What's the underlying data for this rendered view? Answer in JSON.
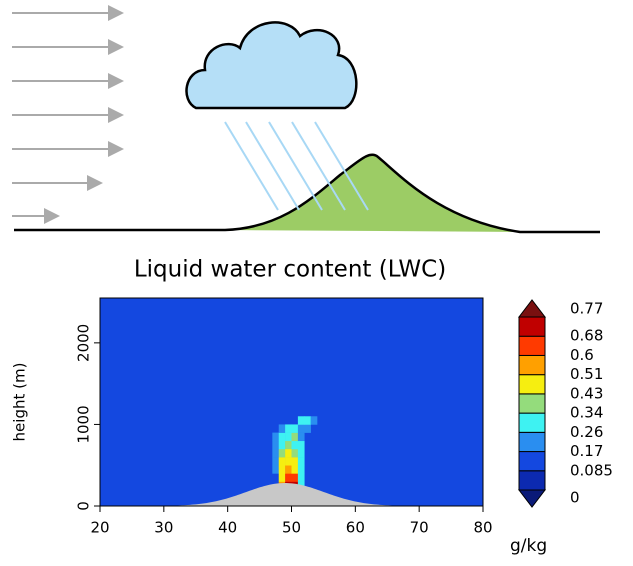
{
  "chart_data": {
    "type": "heatmap",
    "title": "Liquid water content (LWC)",
    "y_label": "height (m)",
    "colorbar_label": "g/kg",
    "xlim": [
      20,
      80
    ],
    "xticks": [
      20,
      30,
      40,
      50,
      60,
      70,
      80
    ],
    "ylim": [
      0,
      2550
    ],
    "yticks": [
      0,
      1000,
      2000
    ],
    "background": "#1448e0",
    "levels": [
      0,
      0.085,
      0.17,
      0.26,
      0.34,
      0.43,
      0.51,
      0.6,
      0.68,
      0.77
    ],
    "colors": [
      "#0a1a78",
      "#0c2ab0",
      "#1448e0",
      "#2a8ef0",
      "#3ef2f2",
      "#94dc7c",
      "#f6ee10",
      "#ffa000",
      "#ff3a00",
      "#c00000",
      "#7a1010"
    ],
    "cell_size": [
      1,
      100
    ],
    "cells": [
      [
        48,
        200,
        0.55
      ],
      [
        49,
        200,
        0.72
      ],
      [
        50,
        200,
        0.72
      ],
      [
        51,
        200,
        0.3
      ],
      [
        48,
        300,
        0.47
      ],
      [
        49,
        300,
        0.65
      ],
      [
        50,
        300,
        0.6
      ],
      [
        51,
        300,
        0.3
      ],
      [
        47,
        400,
        0.2
      ],
      [
        48,
        400,
        0.47
      ],
      [
        49,
        400,
        0.55
      ],
      [
        50,
        400,
        0.47
      ],
      [
        51,
        400,
        0.3
      ],
      [
        47,
        500,
        0.2
      ],
      [
        48,
        500,
        0.47
      ],
      [
        49,
        500,
        0.47
      ],
      [
        50,
        500,
        0.47
      ],
      [
        51,
        500,
        0.3
      ],
      [
        47,
        600,
        0.2
      ],
      [
        48,
        600,
        0.38
      ],
      [
        49,
        600,
        0.47
      ],
      [
        50,
        600,
        0.38
      ],
      [
        51,
        600,
        0.3
      ],
      [
        47,
        700,
        0.2
      ],
      [
        48,
        700,
        0.3
      ],
      [
        49,
        700,
        0.38
      ],
      [
        50,
        700,
        0.3
      ],
      [
        51,
        700,
        0.3
      ],
      [
        47,
        800,
        0.2
      ],
      [
        48,
        800,
        0.3
      ],
      [
        49,
        800,
        0.3
      ],
      [
        50,
        800,
        0.38
      ],
      [
        51,
        800,
        0.2
      ],
      [
        48,
        900,
        0.2
      ],
      [
        49,
        900,
        0.3
      ],
      [
        50,
        900,
        0.3
      ],
      [
        51,
        900,
        0.2
      ],
      [
        52,
        900,
        0.2
      ],
      [
        51,
        1000,
        0.3
      ],
      [
        52,
        1000,
        0.3
      ],
      [
        53,
        1000,
        0.2
      ]
    ]
  }
}
